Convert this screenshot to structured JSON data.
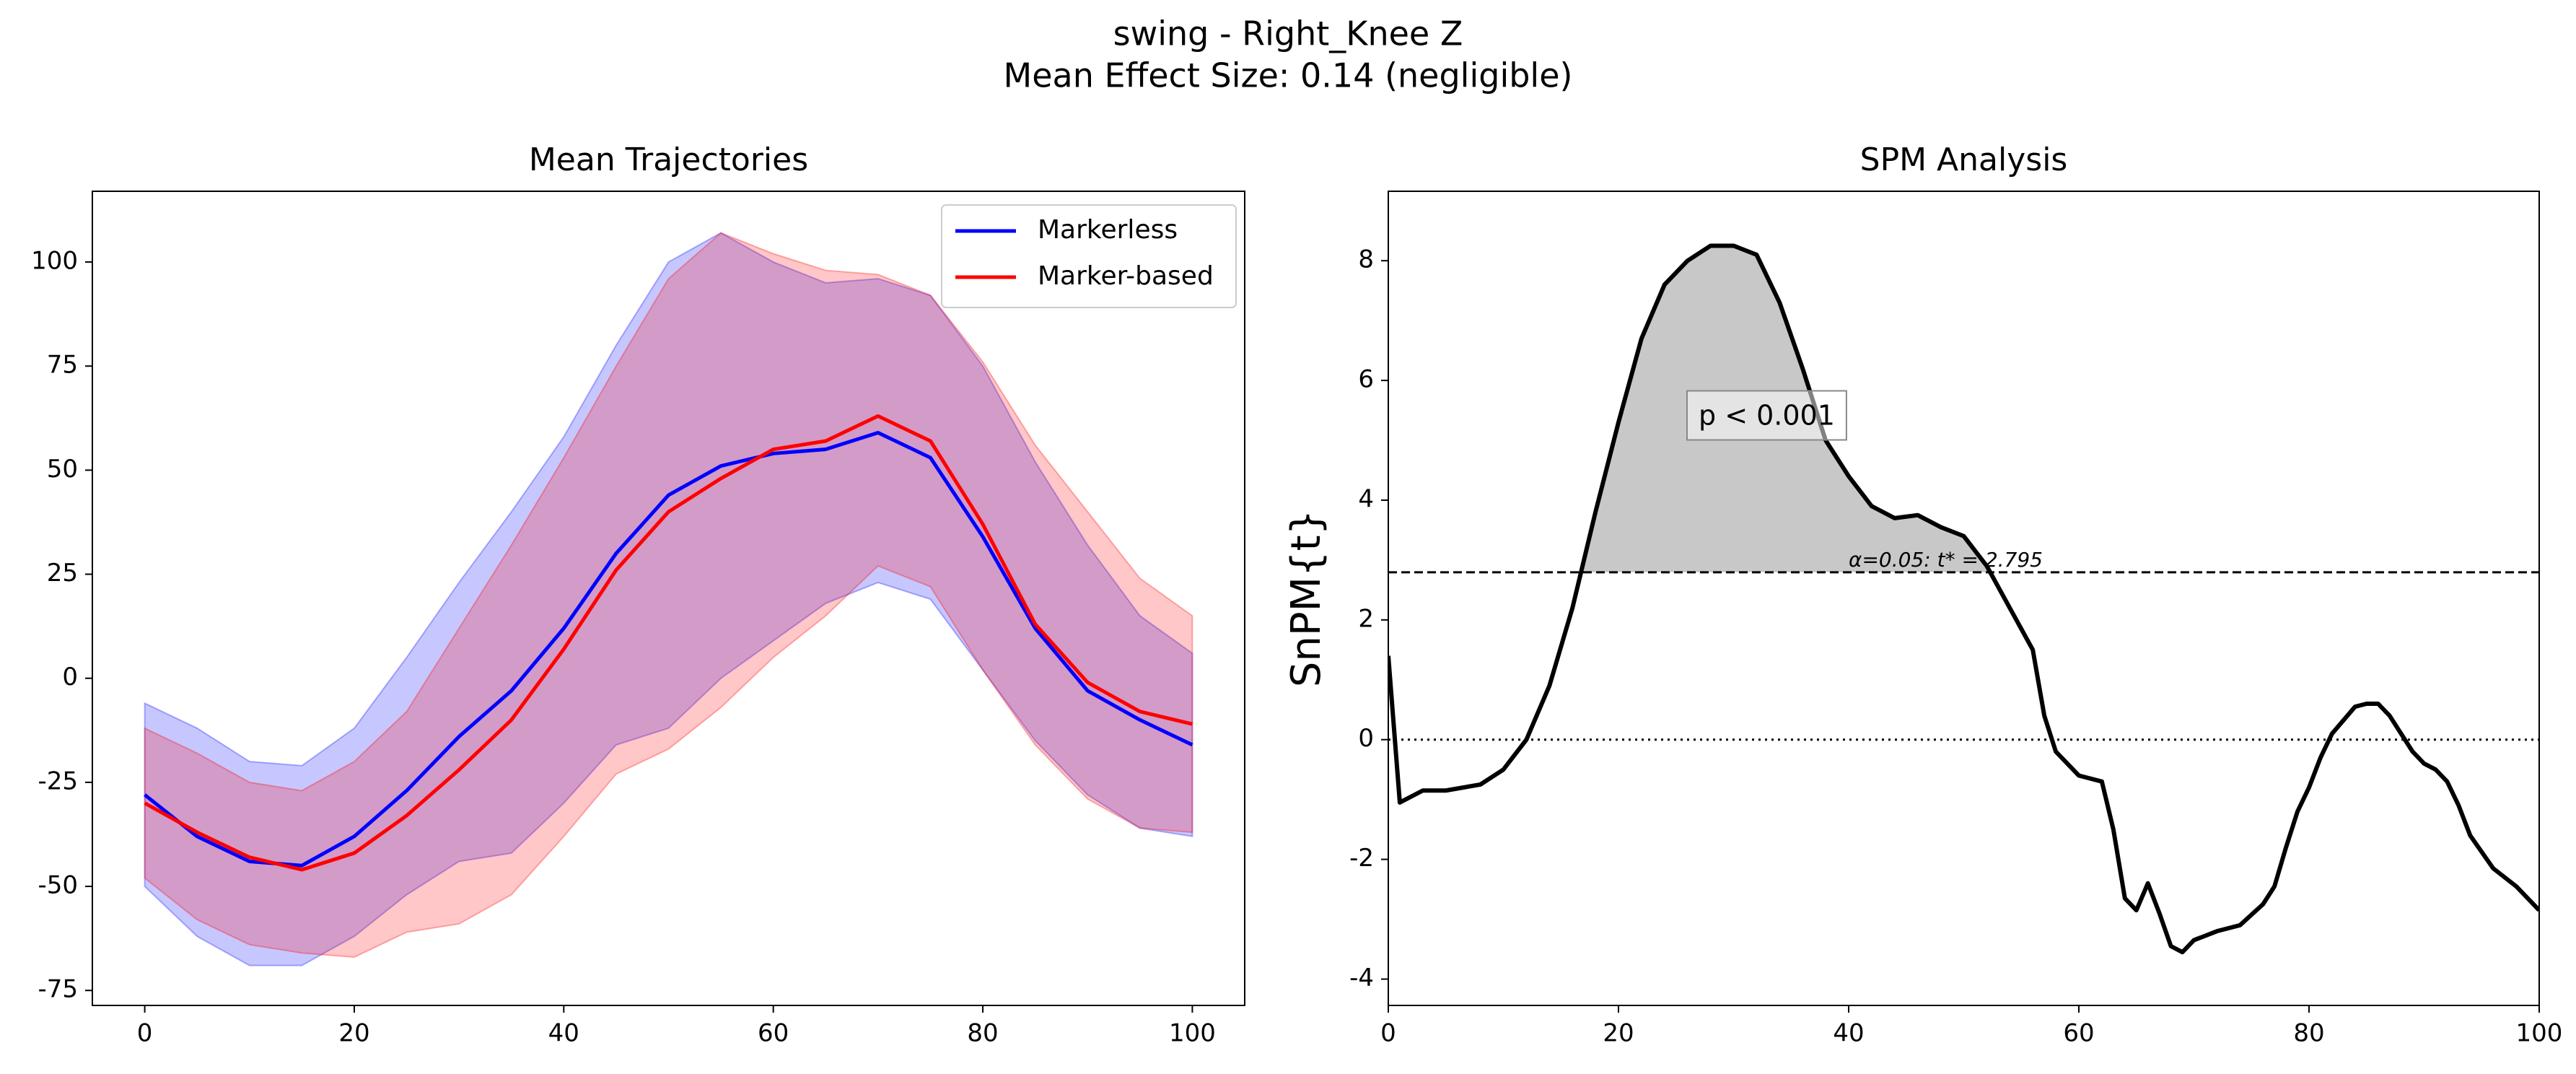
{
  "title": "swing - Right_Knee Z",
  "subtitle": "Mean Effect Size: 0.14 (negligible)",
  "chart_data": [
    {
      "type": "band-line",
      "title": "Mean Trajectories",
      "x": [
        0,
        5,
        10,
        15,
        20,
        25,
        30,
        35,
        40,
        45,
        50,
        55,
        60,
        65,
        70,
        75,
        80,
        85,
        90,
        95,
        100
      ],
      "series": [
        {
          "name": "Markerless",
          "color": "#0000ff",
          "values": [
            -28,
            -38,
            -44,
            -45,
            -38,
            -27,
            -14,
            -3,
            12,
            30,
            44,
            51,
            54,
            55,
            59,
            53,
            34,
            12,
            -3,
            -10,
            -16
          ],
          "upper": [
            -6,
            -12,
            -20,
            -21,
            -12,
            5,
            23,
            40,
            58,
            80,
            100,
            107,
            100,
            95,
            96,
            92,
            75,
            52,
            32,
            15,
            6
          ],
          "lower": [
            -50,
            -62,
            -69,
            -69,
            -62,
            -52,
            -44,
            -42,
            -30,
            -16,
            -12,
            0,
            9,
            18,
            23,
            19,
            2,
            -15,
            -28,
            -36,
            -38
          ]
        },
        {
          "name": "Marker-based",
          "color": "#ff0000",
          "values": [
            -30,
            -37,
            -43,
            -46,
            -42,
            -33,
            -22,
            -10,
            7,
            26,
            40,
            48,
            55,
            57,
            63,
            57,
            37,
            13,
            -1,
            -8,
            -11
          ],
          "upper": [
            -12,
            -18,
            -25,
            -27,
            -20,
            -8,
            12,
            32,
            53,
            75,
            96,
            107,
            102,
            98,
            97,
            92,
            76,
            56,
            40,
            24,
            15
          ],
          "lower": [
            -48,
            -58,
            -64,
            -66,
            -67,
            -61,
            -59,
            -52,
            -38,
            -23,
            -17,
            -7,
            5,
            15,
            27,
            22,
            2,
            -16,
            -29,
            -36,
            -37
          ]
        }
      ],
      "xlim": [
        -5,
        105
      ],
      "ylim": [
        -78.6,
        117
      ],
      "xticks": [
        0,
        20,
        40,
        60,
        80,
        100
      ],
      "yticks": [
        -75,
        -50,
        -25,
        0,
        25,
        50,
        75,
        100
      ],
      "legend": "upper right",
      "grid": false
    },
    {
      "type": "spm",
      "title": "SPM Analysis",
      "ylabel": "SnPM{t}",
      "x": [
        0,
        1,
        3,
        5,
        8,
        10,
        12,
        14,
        16,
        18,
        20,
        22,
        24,
        26,
        28,
        30,
        32,
        34,
        36,
        38,
        40,
        42,
        44,
        46,
        48,
        50,
        52,
        54,
        56,
        57,
        58,
        60,
        62,
        63,
        64,
        65,
        66,
        67,
        68,
        69,
        70,
        72,
        74,
        76,
        77,
        78,
        79,
        80,
        81,
        82,
        84,
        85,
        86,
        87,
        88,
        89,
        90,
        91,
        92,
        93,
        94,
        96,
        98,
        100
      ],
      "values": [
        1.4,
        -1.05,
        -0.85,
        -0.85,
        -0.75,
        -0.5,
        0,
        0.9,
        2.2,
        3.8,
        5.3,
        6.7,
        7.6,
        8.0,
        8.25,
        8.25,
        8.1,
        7.3,
        6.2,
        5.0,
        4.4,
        3.9,
        3.7,
        3.75,
        3.55,
        3.4,
        2.9,
        2.2,
        1.5,
        0.4,
        -0.2,
        -0.6,
        -0.7,
        -1.5,
        -2.65,
        -2.85,
        -2.4,
        -2.9,
        -3.45,
        -3.55,
        -3.35,
        -3.2,
        -3.1,
        -2.75,
        -2.45,
        -1.8,
        -1.2,
        -0.8,
        -0.3,
        0.1,
        0.55,
        0.6,
        0.6,
        0.4,
        0.1,
        -0.2,
        -0.4,
        -0.5,
        -0.7,
        -1.1,
        -1.6,
        -2.15,
        -2.45,
        -2.85
      ],
      "color": "#000000",
      "threshold": 2.795,
      "threshold_label": "α=0.05:  t* = 2.795",
      "cluster_label": "p < 0.001",
      "xlim": [
        0,
        100
      ],
      "ylim": [
        -4.44,
        9.16
      ],
      "xticks": [
        0,
        20,
        40,
        60,
        80,
        100
      ],
      "yticks": [
        -4,
        -2,
        0,
        2,
        4,
        6,
        8
      ],
      "grid": false
    }
  ]
}
